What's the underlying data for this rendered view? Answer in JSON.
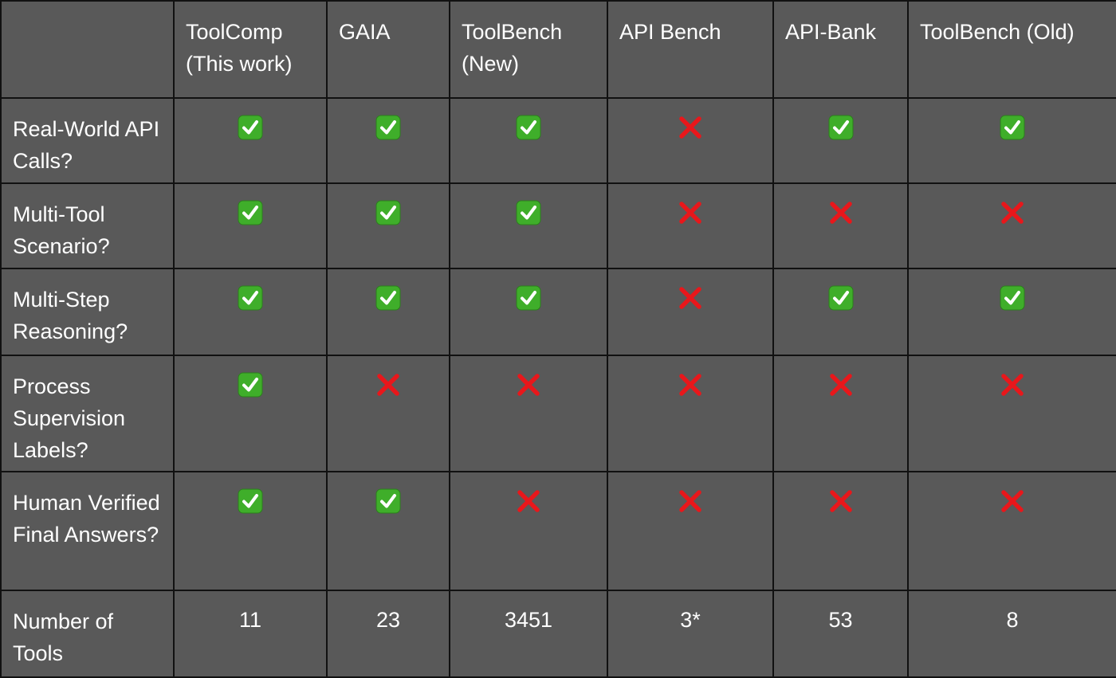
{
  "table": {
    "columns": [
      "ToolComp (This work)",
      "GAIA",
      "ToolBench (New)",
      "API Bench",
      "API-Bank",
      "ToolBench (Old)"
    ],
    "rows": [
      {
        "label": "Real-World API Calls?",
        "values": [
          true,
          true,
          true,
          false,
          true,
          true
        ]
      },
      {
        "label": "Multi-Tool Scenario?",
        "values": [
          true,
          true,
          true,
          false,
          false,
          false
        ]
      },
      {
        "label": "Multi-Step Reasoning?",
        "values": [
          true,
          true,
          true,
          false,
          true,
          true
        ]
      },
      {
        "label": "Process Supervision Labels?",
        "values": [
          true,
          false,
          false,
          false,
          false,
          false
        ]
      },
      {
        "label": "Human Verified Final Answers?",
        "values": [
          true,
          true,
          false,
          false,
          false,
          false
        ]
      },
      {
        "label": "Number of Tools",
        "values": [
          11,
          23,
          3451,
          "3*",
          53,
          8
        ]
      }
    ]
  }
}
